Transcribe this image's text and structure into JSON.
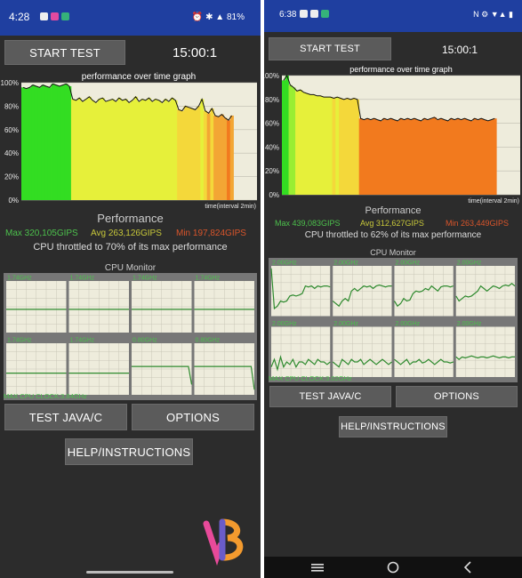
{
  "left_screen": {
    "status": {
      "time": "4:28",
      "right": "⏰ ✱ ▲ 81%"
    },
    "start_button": "START TEST",
    "timer": "15:00:1",
    "graph": {
      "title": "performance over time graph",
      "y_ticks": [
        "100%",
        "80%",
        "60%",
        "40%",
        "20%",
        "0%"
      ],
      "x_label": "time(interval 2min)"
    },
    "performance_label": "Performance",
    "max": "Max 320,105GIPS",
    "avg": "Avg 263,126GIPS",
    "min": "Min 197,824GIPS",
    "throttle": "CPU throttled to 70% of its max performance",
    "cpu_monitor_title": "CPU Monitor",
    "cpu_clocks": [
      "1.74GHz",
      "1.74GHz",
      "1.74GHz",
      "1.74GHz",
      "1.74GHz",
      "1.74GHz",
      "0.80GHz",
      "0.80GHz"
    ],
    "max_clock": "MAX CPU CLOCK:3.84GHz",
    "java_button": "TEST JAVA/C",
    "options_button": "OPTIONS",
    "help_button": "HELP/INSTRUCTIONS"
  },
  "right_screen": {
    "status": {
      "time": "6:38",
      "right": "N ⚙ ▼▲ ▮"
    },
    "start_button": "START TEST",
    "timer": "15:00:1",
    "graph": {
      "title": "performance over time graph",
      "y_ticks": [
        "100%",
        "80%",
        "60%",
        "40%",
        "20%",
        "0%"
      ],
      "x_label": "time(interval 2min)"
    },
    "performance_label": "Performance",
    "max": "Max 439,083GIPS",
    "avg": "Avg 312,627GIPS",
    "min": "Min 263,449GIPS",
    "throttle": "CPU throttled to 62% of its max performance",
    "cpu_monitor_title": "CPU Monitor",
    "cpu_clocks": [
      "2.00GHz",
      "2.00GHz",
      "2.00GHz",
      "2.00GHz",
      "2.00GHz",
      "2.00GHz",
      "2.00GHz",
      "2.00GHz"
    ],
    "max_clock": "MAX CPU CLOCK:3.02GHz",
    "java_button": "TEST JAVA/C",
    "options_button": "OPTIONS",
    "help_button": "HELP/INSTRUCTIONS"
  },
  "chart_data": [
    {
      "type": "line",
      "title": "performance over time graph",
      "xlabel": "time(interval 2min)",
      "ylabel": "",
      "ylim": [
        0,
        100
      ],
      "y_ticks": [
        0,
        20,
        40,
        60,
        80,
        100
      ],
      "series": [
        {
          "values": [
            96,
            95,
            96,
            98,
            97,
            96,
            98,
            97,
            96,
            99,
            98,
            97,
            98,
            99,
            97,
            86,
            85,
            87,
            84,
            86,
            88,
            85,
            83,
            86,
            87,
            84,
            85,
            86,
            84,
            87,
            85,
            86,
            83,
            85,
            88,
            84,
            86,
            85,
            87,
            84,
            86,
            85,
            83,
            86,
            84,
            87,
            85,
            77,
            76,
            80,
            79,
            78,
            77,
            80,
            86,
            76,
            74,
            78,
            72,
            71,
            73,
            70,
            68,
            72
          ]
        }
      ]
    },
    {
      "type": "line",
      "title": "performance over time graph",
      "xlabel": "time(interval 2min)",
      "ylabel": "",
      "ylim": [
        0,
        100
      ],
      "y_ticks": [
        0,
        20,
        40,
        60,
        80,
        100
      ],
      "series": [
        {
          "values": [
            96,
            100,
            92,
            90,
            87,
            88,
            86,
            85,
            84,
            84,
            83,
            83,
            82,
            82,
            82,
            81,
            82,
            81,
            80,
            81,
            80,
            81,
            80,
            64,
            63,
            64,
            63,
            64,
            63,
            62,
            64,
            63,
            64,
            63,
            62,
            64,
            63,
            64,
            63,
            64,
            63,
            62,
            64,
            63,
            64,
            65,
            63,
            64,
            63,
            62,
            64,
            63,
            64,
            63,
            64,
            63,
            62,
            64,
            63,
            64,
            63,
            62,
            63,
            64
          ]
        }
      ]
    }
  ]
}
